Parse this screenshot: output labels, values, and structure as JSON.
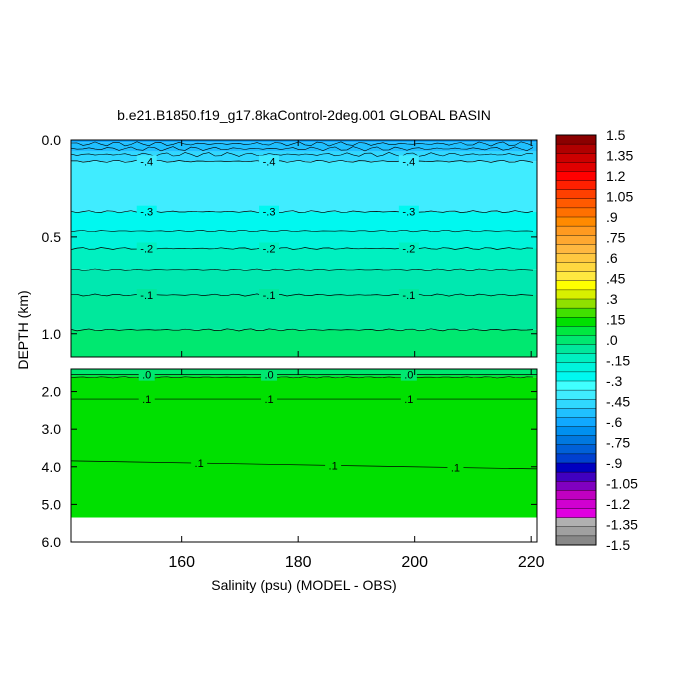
{
  "chart_data": {
    "type": "contour",
    "title": "b.e21.B1850.f19_g17.8kaControl-2deg.001 GLOBAL BASIN",
    "xlabel": "Salinity (psu) (MODEL - OBS)",
    "ylabel": "DEPTH (km)",
    "xlim": [
      141,
      221
    ],
    "x_ticks": [
      160,
      180,
      200,
      220
    ],
    "x_tick_labels": [
      "160",
      "180",
      "200",
      "220"
    ],
    "upper_panel": {
      "ylim": [
        0.0,
        1.12
      ],
      "y_ticks": [
        0.0,
        0.5,
        1.0
      ],
      "y_tick_labels": [
        "0.0",
        "0.5",
        "1.0"
      ],
      "contours": [
        {
          "level": -0.4,
          "depth": 0.11,
          "label": "-.4",
          "label_x": [
            154,
            175,
            199
          ]
        },
        {
          "level": -0.3,
          "depth": 0.37,
          "label": "-.3",
          "label_x": [
            154,
            175,
            199
          ]
        },
        {
          "level": -0.2,
          "depth": 0.56,
          "label": "-.2",
          "label_x": [
            154,
            175,
            199
          ]
        },
        {
          "level": -0.1,
          "depth": 0.8,
          "label": "-.1",
          "label_x": [
            154,
            175,
            199
          ]
        },
        {
          "level": 0.0,
          "depth": 0.98,
          "label": "",
          "label_x": []
        }
      ]
    },
    "lower_panel": {
      "ylim": [
        1.4,
        6.0
      ],
      "y_ticks": [
        2.0,
        3.0,
        4.0,
        5.0,
        6.0
      ],
      "y_tick_labels": [
        "2.0",
        "3.0",
        "4.0",
        "5.0",
        "6.0"
      ],
      "contours": [
        {
          "level": 0.0,
          "depth": 1.55,
          "label": ".0",
          "label_x": [
            154,
            175,
            199
          ]
        },
        {
          "level": 0.1,
          "depth": 2.2,
          "label": ".1",
          "label_x": [
            154,
            175,
            199
          ]
        },
        {
          "level": 0.1,
          "depth": 3.95,
          "label": ".1",
          "label_x": [
            163,
            186,
            207
          ]
        }
      ],
      "no_data_below_depth": 5.35
    },
    "colorbar": {
      "labels": [
        "1.5",
        "1.35",
        "1.2",
        "1.05",
        ".9",
        ".75",
        ".6",
        ".45",
        ".3",
        ".15",
        ".0",
        "-.15",
        "-.3",
        "-.45",
        "-.6",
        "-.75",
        "-.9",
        "-1.05",
        "-1.2",
        "-1.35",
        "-1.5"
      ],
      "colors": [
        "#8b0000",
        "#b00000",
        "#cc0000",
        "#e00000",
        "#ff0000",
        "#ff2000",
        "#ff4000",
        "#ff5a00",
        "#ff7000",
        "#ff8a00",
        "#ff9a20",
        "#ffa830",
        "#ffb840",
        "#ffc840",
        "#ffd840",
        "#ffe840",
        "#ffff00",
        "#d8f000",
        "#90e000",
        "#40e000",
        "#00e000",
        "#00e840",
        "#00e870",
        "#00e89c",
        "#00f0c0",
        "#00f4dc",
        "#00f8f0",
        "#40ffff",
        "#40ecff",
        "#30d8ff",
        "#20c0ff",
        "#10a8ff",
        "#0090f0",
        "#0078e0",
        "#0060d8",
        "#0040d0",
        "#0000c0",
        "#4000c0",
        "#8000c0",
        "#c000c0",
        "#d000d0",
        "#e000e0",
        "#b0b0b0",
        "#a0a0a0",
        "#888888"
      ]
    }
  }
}
